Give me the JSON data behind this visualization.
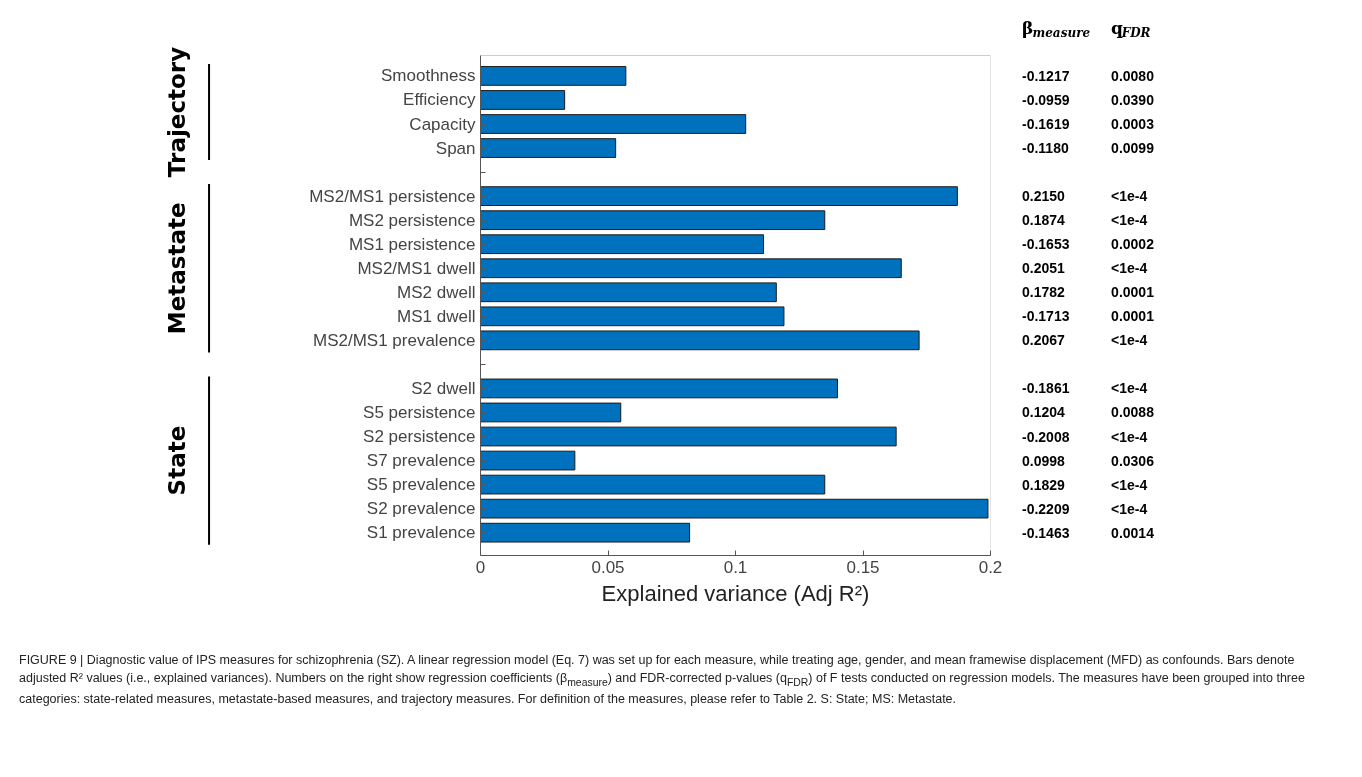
{
  "chart_data": [
    {
      "type": "bar",
      "orientation": "horizontal",
      "xlabel": "Explained variance (Adj R²)",
      "categories": [
        "Smoothness",
        "Efficiency",
        "Capacity",
        "Span",
        null,
        "MS2/MS1 persistence",
        "MS2 persistence",
        "MS1 persistence",
        "MS2/MS1 dwell",
        "MS2 dwell",
        "MS1 dwell",
        "MS2/MS1 prevalence",
        null,
        "S2 dwell",
        "S5 persistence",
        "S2 persistence",
        "S7 prevalence",
        "S5 prevalence",
        "S2 prevalence",
        "S1 prevalence"
      ],
      "values": [
        0.057,
        0.033,
        0.104,
        0.053,
        null,
        0.187,
        0.135,
        0.111,
        0.165,
        0.116,
        0.119,
        0.172,
        null,
        0.14,
        0.055,
        0.163,
        0.037,
        0.135,
        0.199,
        0.082
      ],
      "color": "#0072bd",
      "xlim": [
        0,
        0.2
      ],
      "xticks": [
        0,
        0.05,
        0.1,
        0.15,
        0.2
      ],
      "grid": false,
      "annotations": [
        "Trajectory",
        "Metastate",
        "State",
        "FIGURE 9 | Diagnostic value of IPS measures for schizophrenia (SZ). A linear regression model (Eq. 7) was set up for each measure, while treating age, gender, and mean framewise displacement (MFD) as confounds. Bars denote adjusted R² values (i.e., explained variances). Numbers on the right show regression coefficients (β$_{measure}$) and FDR-corrected p-values (q$_{FDR}$) of F tests conducted on regression models. The measures have been grouped into three categories: state-related measures, metastate-based measures, and trajectory measures. For definition of the measures, please refer to Table 2. S: State; MS: Metastate."
      ]
    },
    {
      "type": "other",
      "categories": [
        "β$_{measure}$",
        "q$_{FDR}$"
      ],
      "cell_labels": [
        [
          "-0.1217",
          "0.0080"
        ],
        [
          "-0.0959",
          "0.0390"
        ],
        [
          "-0.1619",
          "0.0003"
        ],
        [
          "-0.1180",
          "0.0099"
        ],
        null,
        [
          "0.2150",
          "<1e-4"
        ],
        [
          "0.1874",
          "<1e-4"
        ],
        [
          "-0.1653",
          "0.0002"
        ],
        [
          "0.2051",
          "<1e-4"
        ],
        [
          "0.1782",
          "0.0001"
        ],
        [
          "-0.1713",
          "0.0001"
        ],
        [
          "0.2067",
          "<1e-4"
        ],
        null,
        [
          "-0.1861",
          "<1e-4"
        ],
        [
          "0.1204",
          "0.0088"
        ],
        [
          "-0.2008",
          "<1e-4"
        ],
        [
          "0.0998",
          "0.0306"
        ],
        [
          "0.1829",
          "<1e-4"
        ],
        [
          "-0.2209",
          "<1e-4"
        ],
        [
          "-0.1463",
          "0.0014"
        ]
      ]
    }
  ]
}
